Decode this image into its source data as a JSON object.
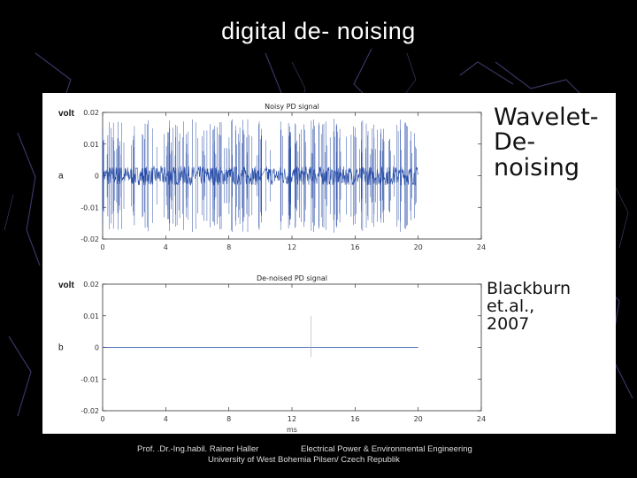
{
  "slide": {
    "title": "digital de- noising",
    "annotation_wavelet_line1": "Wavelet-",
    "annotation_wavelet_line2": "De-noising",
    "annotation_ref_line1": "Blackburn et.al.,",
    "annotation_ref_line2": "2007",
    "footer_author": "Prof. .Dr.-Ing.habil. Rainer Haller",
    "footer_dept": "Electrical Power & Environmental Engineering",
    "footer_univ": "University of West Bohemia Pilsen/ Czech Republik"
  },
  "chart_data": [
    {
      "type": "line",
      "panel_label": "a",
      "title": "Noisy PD signal",
      "ylabel": "volt",
      "xlabel": "",
      "xlim": [
        0,
        24
      ],
      "ylim": [
        -0.02,
        0.02
      ],
      "x_ticks": [
        0,
        4,
        8,
        12,
        16,
        20,
        24
      ],
      "y_ticks": [
        0.02,
        0.01,
        0,
        -0.01,
        -0.02
      ],
      "y_tick_labels": [
        "0.02",
        "0.01",
        "0",
        "-0.01",
        "-0.02"
      ],
      "color": "#2a4fa8",
      "signal": {
        "description_free": true,
        "x_range": [
          0,
          20
        ],
        "gap_x_range": [
          10.1,
          10.3
        ],
        "noise_band": 0.003,
        "spike_amplitude": 0.018
      }
    },
    {
      "type": "line",
      "panel_label": "b",
      "title": "De-noised PD signal",
      "ylabel": "volt",
      "xlabel": "ms",
      "xlim": [
        0,
        24
      ],
      "ylim": [
        -0.02,
        0.02
      ],
      "x_ticks": [
        0,
        4,
        8,
        12,
        16,
        20,
        24
      ],
      "y_ticks": [
        0.02,
        0.01,
        0,
        -0.01,
        -0.02
      ],
      "y_tick_labels": [
        "0.02",
        "0.01",
        "0",
        "-0.01",
        "-0.02"
      ],
      "color": "#2a4fa8",
      "signal": {
        "x_range": [
          0,
          20
        ],
        "spike_x": 13.2,
        "spike_amplitude": 0.01
      }
    }
  ]
}
